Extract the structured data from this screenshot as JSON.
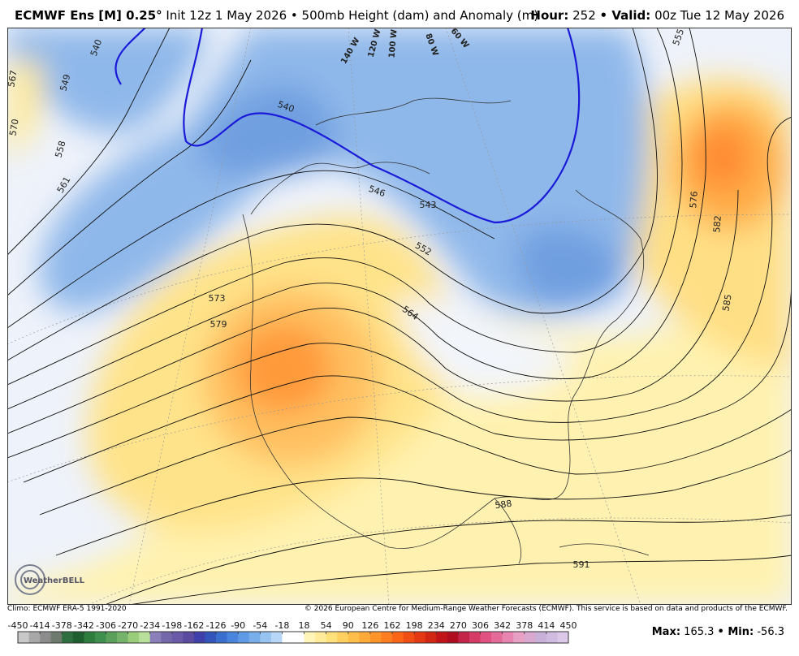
{
  "header": {
    "model": "ECMWF Ens [M] 0.25°",
    "description": "Init 12z 1 May 2026 • 500mb Height (dam) and Anomaly (m)",
    "hour_label": "Hour:",
    "hour": "252",
    "valid_label": "• Valid:",
    "valid": "00z Tue 12 May 2026"
  },
  "map": {
    "contour_labels": [
      "540",
      "549",
      "558",
      "567",
      "570",
      "561",
      "540",
      "546",
      "543",
      "552",
      "564",
      "573",
      "579",
      "555",
      "576",
      "582",
      "585",
      "588",
      "591"
    ],
    "meridian_labels": [
      "140 W",
      "120 W",
      "100 W",
      "80 W",
      "60 W"
    ]
  },
  "logo": "WeatherBELL",
  "footer": {
    "climo": "Climo: ECMWF ERA-5 1991-2020",
    "copyright": "© 2026 European Centre for Medium-Range Weather Forecasts (ECMWF). This service is based on data and products of the ECMWF."
  },
  "colorbar": {
    "ticks": [
      -450,
      -414,
      -378,
      -342,
      -306,
      -270,
      -234,
      -198,
      -162,
      -126,
      -90,
      -54,
      -18,
      18,
      54,
      90,
      126,
      162,
      198,
      234,
      270,
      306,
      342,
      378,
      414,
      450
    ],
    "colors": [
      "#c8c8c8",
      "#a8a8a8",
      "#8c8c8c",
      "#6e7a6e",
      "#2f6f3f",
      "#1f5e2e",
      "#2e7d3e",
      "#3f8f4f",
      "#5aa05a",
      "#76b36a",
      "#9acd7a",
      "#b8e09a",
      "#8a7fb8",
      "#7568aa",
      "#6a5aa8",
      "#5a4aa0",
      "#3e3fa8",
      "#3355bb",
      "#3a6fd0",
      "#4a85dd",
      "#5e9ae6",
      "#78aeea",
      "#98c2f0",
      "#b8d6f6",
      "#ffffff",
      "#ffffff",
      "#fff5b8",
      "#ffeb99",
      "#ffe07a",
      "#ffd060",
      "#ffbf4a",
      "#ffaa38",
      "#ff952a",
      "#ff7d20",
      "#fa6518",
      "#f04e14",
      "#e33812",
      "#d12612",
      "#c01418",
      "#b00c20",
      "#c4244a",
      "#d63a66",
      "#e05080",
      "#e46a98",
      "#e884b0",
      "#e8a0c4",
      "#d8a8d0",
      "#c8b0d8",
      "#d0bce0",
      "#dcc8e8"
    ]
  },
  "stats": {
    "max_label": "Max:",
    "max": 165.3,
    "min_label": "• Min:",
    "min": -56.3
  }
}
